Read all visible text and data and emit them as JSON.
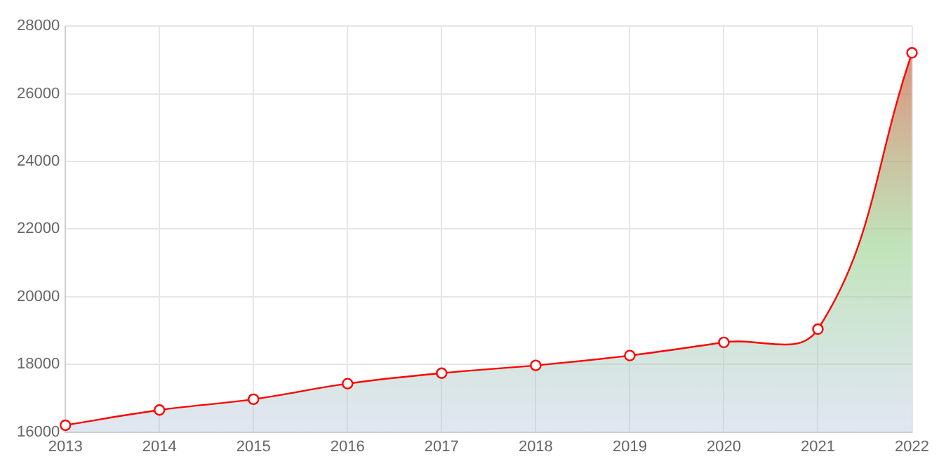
{
  "chart_data": {
    "type": "area",
    "categories": [
      "2013",
      "2014",
      "2015",
      "2016",
      "2017",
      "2018",
      "2019",
      "2020",
      "2021",
      "2022"
    ],
    "series": [
      {
        "color": "#ff0000",
        "values": [
          16200,
          16650,
          16970,
          17430,
          17740,
          17970,
          18260,
          18650,
          19040,
          27210
        ]
      }
    ],
    "ylim": [
      16000,
      28000
    ],
    "yticks": [
      16000,
      18000,
      20000,
      22000,
      24000,
      26000,
      28000
    ],
    "grid": true,
    "legend": false,
    "marker": "circle",
    "line_style": "solid"
  }
}
